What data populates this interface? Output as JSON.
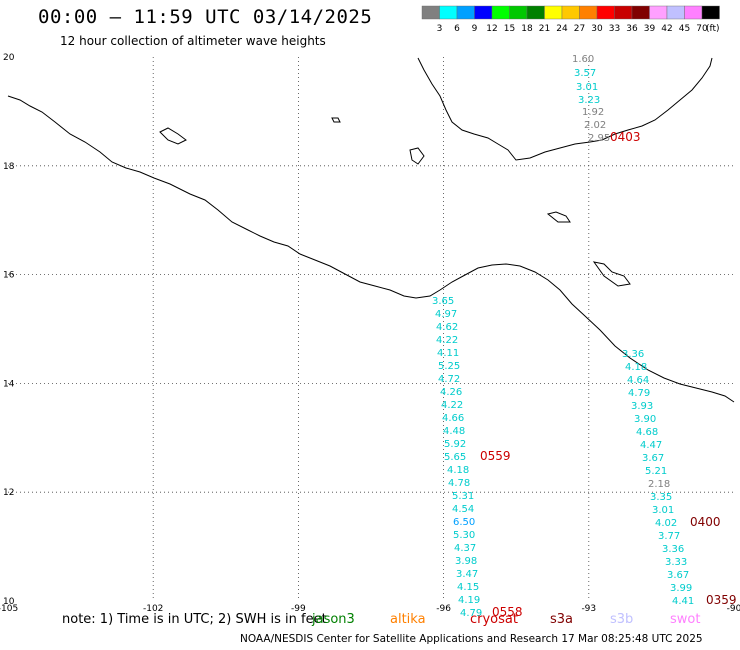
{
  "title": "00:00 – 11:59 UTC 03/14/2025",
  "subtitle": "12 hour collection of altimeter wave heights",
  "colorbar": {
    "colors": [
      "#808080",
      "#00ffff",
      "#00a0ff",
      "#0000ff",
      "#00ff00",
      "#00c800",
      "#008000",
      "#ffff00",
      "#ffc800",
      "#ff8000",
      "#ff0000",
      "#c80000",
      "#800000",
      "#ffa0ff",
      "#c0c0ff",
      "#ff80ff",
      "#000000"
    ],
    "labels": [
      "3",
      "6",
      "9",
      "12",
      "15",
      "18",
      "21",
      "24",
      "27",
      "30",
      "33",
      "36",
      "39",
      "42",
      "45",
      "70"
    ],
    "unit": "(ft)"
  },
  "map": {
    "lon_range": [
      -105,
      -90
    ],
    "lat_range": [
      10,
      20
    ],
    "lon_ticks": [
      "-105",
      "-102",
      "-99",
      "-96",
      "-93",
      "-90"
    ],
    "lat_ticks": [
      "20",
      "18",
      "16",
      "14",
      "12",
      "10"
    ],
    "grid": "dotted"
  },
  "tracks": [
    {
      "time": "0403",
      "time_color": "#cc0000",
      "values": [
        {
          "v": "1.60",
          "c": "#808080"
        },
        {
          "v": "3.57",
          "c": "#00cccc"
        },
        {
          "v": "3.01",
          "c": "#00cccc"
        },
        {
          "v": "3.23",
          "c": "#00cccc"
        },
        {
          "v": "1.92",
          "c": "#808080"
        },
        {
          "v": "2.02",
          "c": "#808080"
        },
        {
          "v": "2.95",
          "c": "#808080"
        }
      ]
    },
    {
      "time": "0559",
      "time_color": "#cc0000",
      "values": [
        {
          "v": "3.65",
          "c": "#00cccc"
        },
        {
          "v": "4.97",
          "c": "#00cccc"
        },
        {
          "v": "4.62",
          "c": "#00cccc"
        },
        {
          "v": "4.22",
          "c": "#00cccc"
        },
        {
          "v": "4.11",
          "c": "#00cccc"
        },
        {
          "v": "5.25",
          "c": "#00cccc"
        },
        {
          "v": "4.72",
          "c": "#00cccc"
        },
        {
          "v": "4.26",
          "c": "#00cccc"
        },
        {
          "v": "4.22",
          "c": "#00cccc"
        },
        {
          "v": "4.66",
          "c": "#00cccc"
        },
        {
          "v": "4.48",
          "c": "#00cccc"
        },
        {
          "v": "5.92",
          "c": "#00cccc"
        },
        {
          "v": "5.65",
          "c": "#00cccc"
        },
        {
          "v": "4.18",
          "c": "#00cccc"
        },
        {
          "v": "4.78",
          "c": "#00cccc"
        }
      ]
    },
    {
      "time": "0558",
      "time_color": "#cc0000",
      "values": [
        {
          "v": "5.31",
          "c": "#00cccc"
        },
        {
          "v": "4.54",
          "c": "#00cccc"
        },
        {
          "v": "6.50",
          "c": "#00a0ff"
        },
        {
          "v": "5.30",
          "c": "#00cccc"
        },
        {
          "v": "4.37",
          "c": "#00cccc"
        },
        {
          "v": "3.98",
          "c": "#00cccc"
        },
        {
          "v": "3.47",
          "c": "#00cccc"
        },
        {
          "v": "4.15",
          "c": "#00cccc"
        },
        {
          "v": "4.19",
          "c": "#00cccc"
        },
        {
          "v": "4.79",
          "c": "#00cccc"
        }
      ]
    },
    {
      "time": "0400",
      "time_color": "#800000",
      "values": [
        {
          "v": "3.36",
          "c": "#00cccc"
        },
        {
          "v": "4.18",
          "c": "#00cccc"
        },
        {
          "v": "4.64",
          "c": "#00cccc"
        },
        {
          "v": "4.79",
          "c": "#00cccc"
        },
        {
          "v": "3.93",
          "c": "#00cccc"
        },
        {
          "v": "3.90",
          "c": "#00cccc"
        },
        {
          "v": "4.68",
          "c": "#00cccc"
        },
        {
          "v": "4.47",
          "c": "#00cccc"
        },
        {
          "v": "3.67",
          "c": "#00cccc"
        },
        {
          "v": "5.21",
          "c": "#00cccc"
        },
        {
          "v": "2.18",
          "c": "#808080"
        },
        {
          "v": "3.35",
          "c": "#00cccc"
        },
        {
          "v": "3.01",
          "c": "#00cccc"
        },
        {
          "v": "4.02",
          "c": "#00cccc"
        }
      ]
    },
    {
      "time": "0359",
      "time_color": "#800000",
      "values": [
        {
          "v": "3.77",
          "c": "#00cccc"
        },
        {
          "v": "3.36",
          "c": "#00cccc"
        },
        {
          "v": "3.33",
          "c": "#00cccc"
        },
        {
          "v": "3.67",
          "c": "#00cccc"
        },
        {
          "v": "3.99",
          "c": "#00cccc"
        },
        {
          "v": "4.41",
          "c": "#00cccc"
        }
      ]
    }
  ],
  "note": "note: 1) Time is in UTC; 2) SWH is in feet",
  "satellites": [
    {
      "name": "jason3",
      "color": "#008000"
    },
    {
      "name": "altika",
      "color": "#ff8000"
    },
    {
      "name": "cryosat",
      "color": "#cc0000"
    },
    {
      "name": "s3a",
      "color": "#800000"
    },
    {
      "name": "s3b",
      "color": "#c0c0ff"
    },
    {
      "name": "swot",
      "color": "#ff80ff"
    }
  ],
  "credits": "NOAA/NESDIS Center for Satellite Applications and Research    17 Mar 08:25:48 UTC 2025"
}
